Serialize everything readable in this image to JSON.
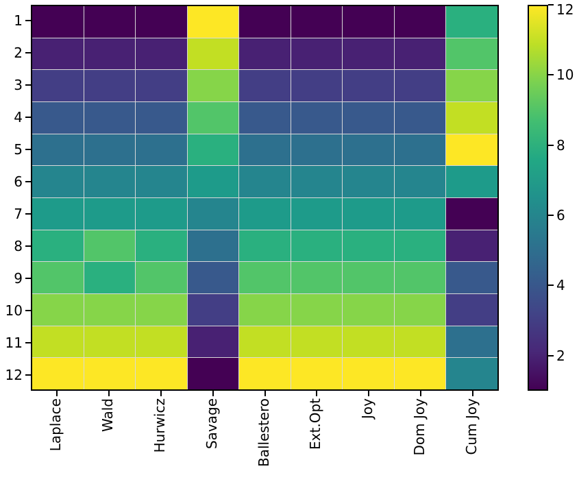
{
  "chart_data": {
    "type": "heatmap",
    "title": "",
    "xlabel": "",
    "ylabel": "",
    "rows": [
      "1",
      "2",
      "3",
      "4",
      "5",
      "6",
      "7",
      "8",
      "9",
      "10",
      "11",
      "12"
    ],
    "columns": [
      "Laplace",
      "Wald",
      "Hurwicz",
      "Savage",
      "Ballestero",
      "Ext.Opt",
      "Joy",
      "Dom Joy",
      "Cum Joy"
    ],
    "matrix": [
      [
        1,
        1,
        1,
        12,
        1,
        1,
        1,
        1,
        8
      ],
      [
        2,
        2,
        2,
        11,
        2,
        2,
        2,
        2,
        9
      ],
      [
        3,
        3,
        3,
        10,
        3,
        3,
        3,
        3,
        10
      ],
      [
        4,
        4,
        4,
        9,
        4,
        4,
        4,
        4,
        11
      ],
      [
        5,
        5,
        5,
        8,
        5,
        5,
        5,
        5,
        12
      ],
      [
        6,
        6,
        6,
        7,
        6,
        6,
        6,
        6,
        7
      ],
      [
        7,
        7,
        7,
        6,
        7,
        7,
        7,
        7,
        1
      ],
      [
        8,
        9,
        8,
        5,
        8,
        8,
        8,
        8,
        2
      ],
      [
        9,
        8,
        9,
        4,
        9,
        9,
        9,
        9,
        4
      ],
      [
        10,
        10,
        10,
        3,
        10,
        10,
        10,
        10,
        3
      ],
      [
        11,
        11,
        11,
        2,
        11,
        11,
        11,
        11,
        5
      ],
      [
        12,
        12,
        12,
        1,
        12,
        12,
        12,
        12,
        6
      ]
    ],
    "value_range": [
      1,
      12
    ],
    "colormap": "viridis",
    "palette": [
      "#440154",
      "#482173",
      "#433e85",
      "#38598c",
      "#2d708e",
      "#25858e",
      "#1e9b8a",
      "#2ab07f",
      "#52c569",
      "#86d549",
      "#c2df23",
      "#fde725"
    ],
    "grid_line_color": "#d9d9d9",
    "axis_color": "#000000",
    "background_color": "#ffffff",
    "legend_position": "right-colorbar",
    "colorbar": {
      "ticks": [
        2,
        4,
        6,
        8,
        10,
        12
      ],
      "min": 1,
      "max": 12,
      "gradient_stops": [
        {
          "at": 0,
          "color": "#440154"
        },
        {
          "at": 10,
          "color": "#482878"
        },
        {
          "at": 20,
          "color": "#414487"
        },
        {
          "at": 30,
          "color": "#355f8d"
        },
        {
          "at": 40,
          "color": "#2a788e"
        },
        {
          "at": 50,
          "color": "#21918c"
        },
        {
          "at": 60,
          "color": "#22a884"
        },
        {
          "at": 70,
          "color": "#42be71"
        },
        {
          "at": 80,
          "color": "#7ad151"
        },
        {
          "at": 90,
          "color": "#bddf26"
        },
        {
          "at": 100,
          "color": "#fde725"
        }
      ]
    }
  }
}
